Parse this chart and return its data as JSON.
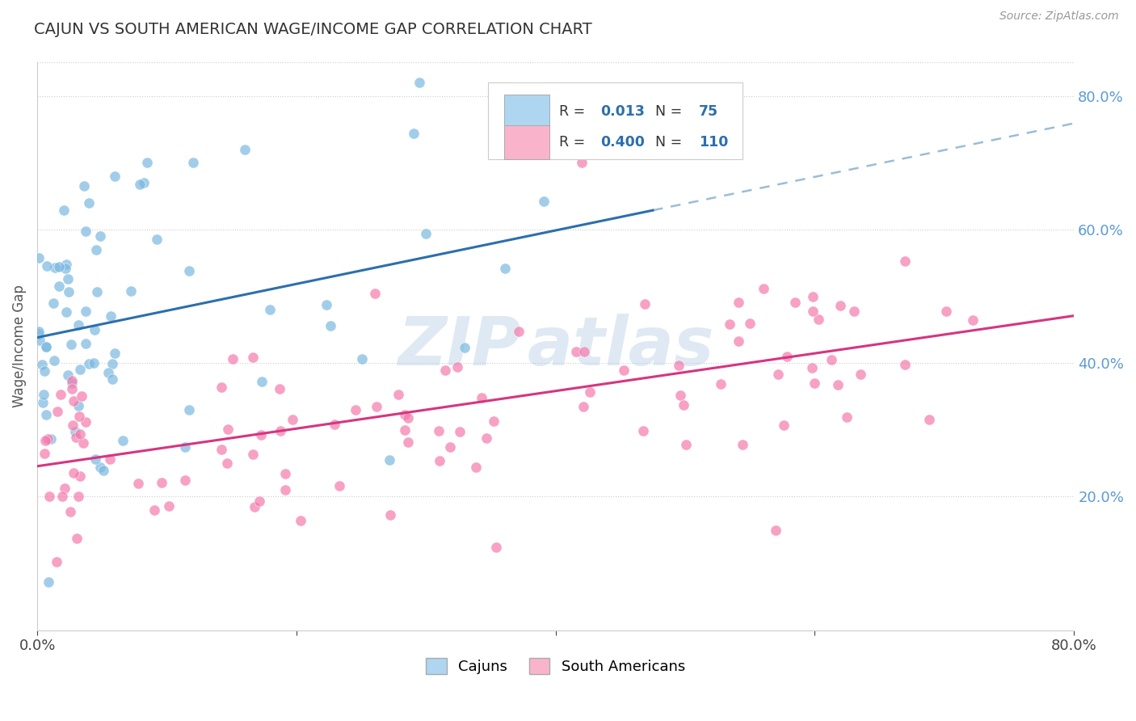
{
  "title": "CAJUN VS SOUTH AMERICAN WAGE/INCOME GAP CORRELATION CHART",
  "source": "Source: ZipAtlas.com",
  "ylabel": "Wage/Income Gap",
  "cajun_R": 0.013,
  "cajun_N": 75,
  "sa_R": 0.4,
  "sa_N": 110,
  "cajun_color": "#7ab8e0",
  "cajun_fill": "#aed6f1",
  "sa_color": "#f47aac",
  "sa_fill": "#f9b4cc",
  "trend_cajun_color": "#2c6fad",
  "trend_sa_color": "#d63580",
  "xmin": 0.0,
  "xmax": 0.8,
  "ymin": 0.0,
  "ymax": 0.85,
  "right_yticks": [
    0.2,
    0.4,
    0.6,
    0.8
  ],
  "right_yticklabels": [
    "20.0%",
    "40.0%",
    "60.0%",
    "80.0%"
  ],
  "background_color": "#ffffff",
  "plot_bg": "#ffffff"
}
